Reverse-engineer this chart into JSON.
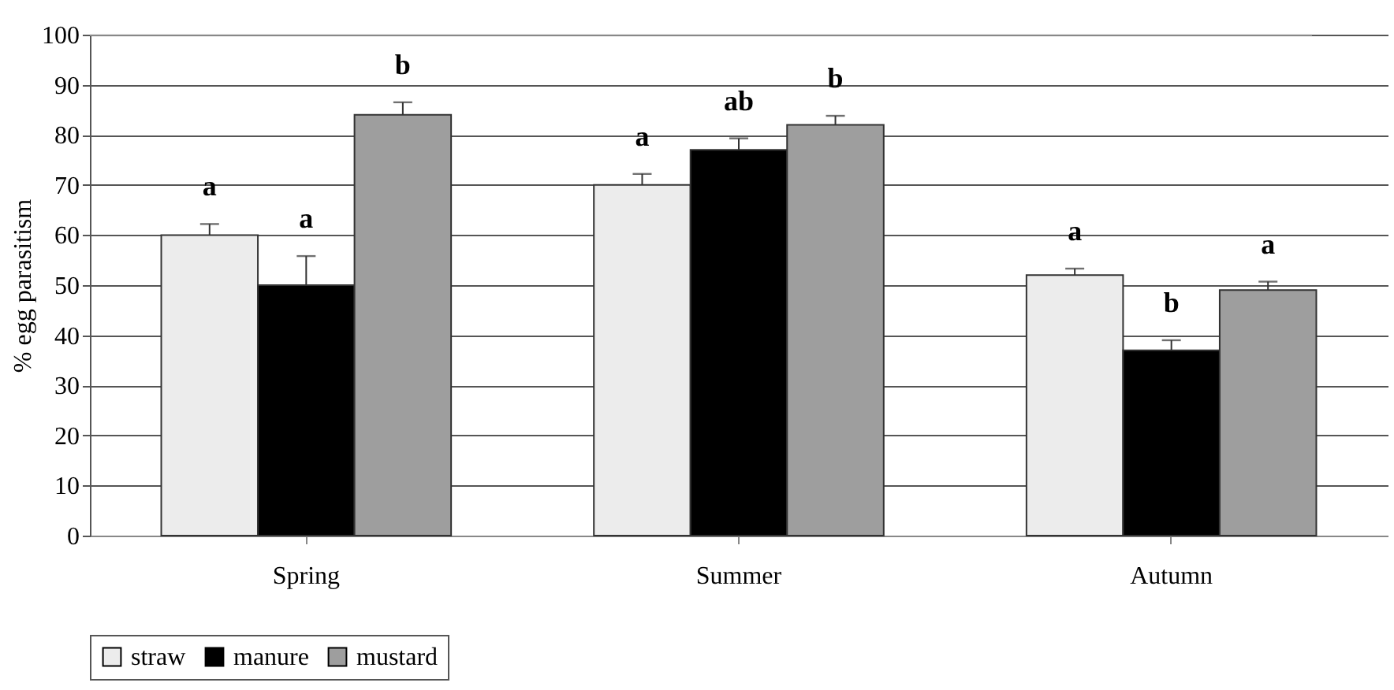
{
  "chart_data": {
    "type": "bar",
    "ylabel": "% egg parasitism",
    "categories": [
      "Spring",
      "Summer",
      "Autumn"
    ],
    "series": [
      {
        "name": "straw",
        "color": "#ececec",
        "values": [
          60,
          70,
          52
        ],
        "errors": [
          [
            60,
            62.2
          ],
          [
            70,
            72.2
          ],
          [
            52,
            53.3
          ]
        ]
      },
      {
        "name": "manure",
        "color": "#000000",
        "values": [
          50,
          77,
          37
        ],
        "errors": [
          [
            50,
            55.8
          ],
          [
            77,
            79.3
          ],
          [
            37,
            39
          ]
        ]
      },
      {
        "name": "mustard",
        "color": "#9e9e9e",
        "values": [
          84,
          82,
          49
        ],
        "errors": [
          [
            84,
            86.5
          ],
          [
            82,
            83.8
          ],
          [
            49,
            50.7
          ]
        ]
      }
    ],
    "ylim": [
      0,
      100
    ],
    "yticks": [
      0,
      10,
      20,
      30,
      40,
      50,
      60,
      70,
      80,
      90,
      100
    ],
    "grid": "y",
    "legend": "bottom",
    "annotations": [
      "a",
      "a",
      "b",
      "a",
      "ab",
      "b",
      "a",
      "b",
      "a"
    ]
  }
}
